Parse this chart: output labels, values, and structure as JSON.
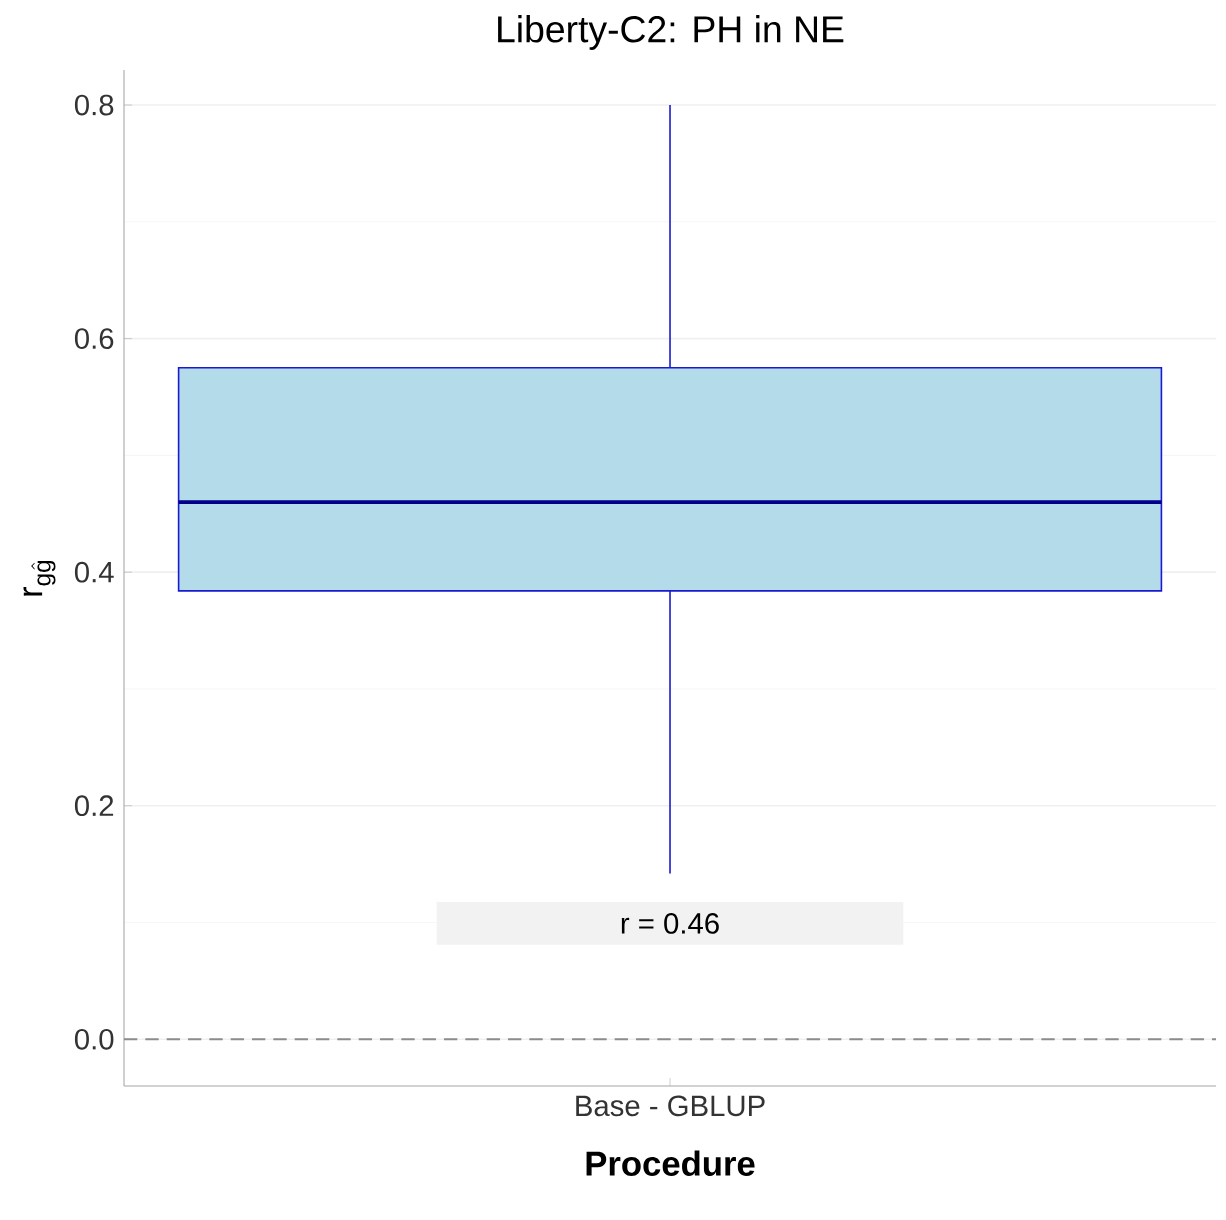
{
  "chart_data": {
    "type": "box",
    "title": "Liberty-C2: PH in NE",
    "xlabel": "Procedure",
    "ylabel": "\\mathrm{r}_{\\mathrm{g}\\hat{\\mathrm{g}}}",
    "categories": [
      "Base - GBLUP"
    ],
    "boxes": [
      {
        "low": 0.142,
        "q1": 0.384,
        "median": 0.46,
        "q3": 0.575,
        "high": 0.8
      }
    ],
    "color": "#b4dbe9",
    "ylim": [
      -0.04,
      0.83
    ],
    "yticks": [
      {
        "value": 0,
        "label": "0.0"
      },
      0.2,
      0.4,
      0.6,
      0.8
    ],
    "grid": "y",
    "ref_lines": [
      {
        "axis": "y",
        "value": 0,
        "color": "#8c8c8c",
        "line_style": "dashed"
      }
    ],
    "annotations": [
      "r = 0.46"
    ]
  }
}
